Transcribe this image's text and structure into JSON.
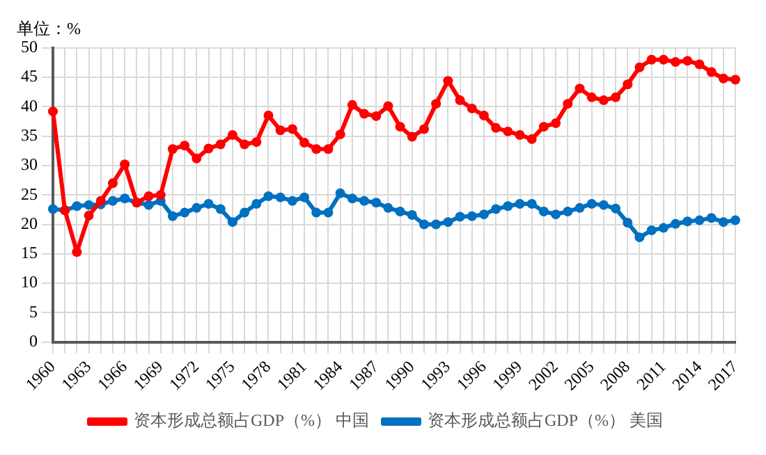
{
  "chart_data": {
    "type": "line",
    "ylabel": "单位：%",
    "categories": [
      "1960",
      null,
      null,
      "1963",
      null,
      null,
      "1966",
      null,
      null,
      "1969",
      null,
      null,
      "1972",
      null,
      null,
      "1975",
      null,
      null,
      "1978",
      null,
      null,
      "1981",
      null,
      null,
      "1984",
      null,
      null,
      "1987",
      null,
      null,
      "1990",
      null,
      null,
      "1993",
      null,
      null,
      "1996",
      null,
      null,
      "1999",
      null,
      null,
      "2002",
      null,
      null,
      "2005",
      null,
      null,
      "2008",
      null,
      null,
      "2011",
      null,
      null,
      "2014",
      null,
      null,
      "2017"
    ],
    "series": [
      {
        "name": "资本形成总额占GDP（%） 中国",
        "color": "#ff0000",
        "values": [
          39.2,
          22.4,
          15.3,
          21.5,
          24,
          27,
          30.2,
          23.7,
          24.8,
          25,
          32.8,
          33.4,
          31.2,
          32.9,
          33.6,
          35.2,
          33.6,
          34,
          38.5,
          36,
          36.2,
          33.9,
          32.8,
          32.8,
          35.3,
          40.3,
          38.8,
          38.4,
          40.1,
          36.6,
          34.9,
          36.2,
          40.5,
          44.4,
          41.1,
          39.7,
          38.5,
          36.4,
          35.8,
          35.2,
          34.5,
          36.6,
          37.2,
          40.5,
          43.1,
          41.6,
          41.1,
          41.6,
          43.8,
          46.7,
          48,
          48,
          47.6,
          47.8,
          47.2,
          45.9,
          44.8,
          44.6
        ]
      },
      {
        "name": "资本形成总额占GDP（%） 美国",
        "color": "#0070c0",
        "values": [
          22.6,
          22.4,
          23.1,
          23.3,
          23.4,
          24,
          24.4,
          23.7,
          23.3,
          24,
          21.4,
          22,
          22.8,
          23.5,
          22.6,
          20.4,
          22,
          23.5,
          24.8,
          24.6,
          24,
          24.6,
          22,
          22,
          25.3,
          24.4,
          24,
          23.7,
          22.8,
          22.2,
          21.6,
          20,
          20,
          20.4,
          21.3,
          21.4,
          21.7,
          22.6,
          23.1,
          23.5,
          23.5,
          22.2,
          21.7,
          22.2,
          22.8,
          23.5,
          23.3,
          22.7,
          20.3,
          17.8,
          19,
          19.4,
          20.1,
          20.5,
          20.7,
          21.1,
          20.4,
          20.7
        ]
      }
    ],
    "ylim": [
      0,
      50
    ],
    "yticks": [
      0,
      5,
      10,
      15,
      20,
      25,
      30,
      35,
      40,
      45,
      50
    ],
    "grid": true,
    "legend": "bottom",
    "marker": "circle",
    "line_style": "solid"
  }
}
